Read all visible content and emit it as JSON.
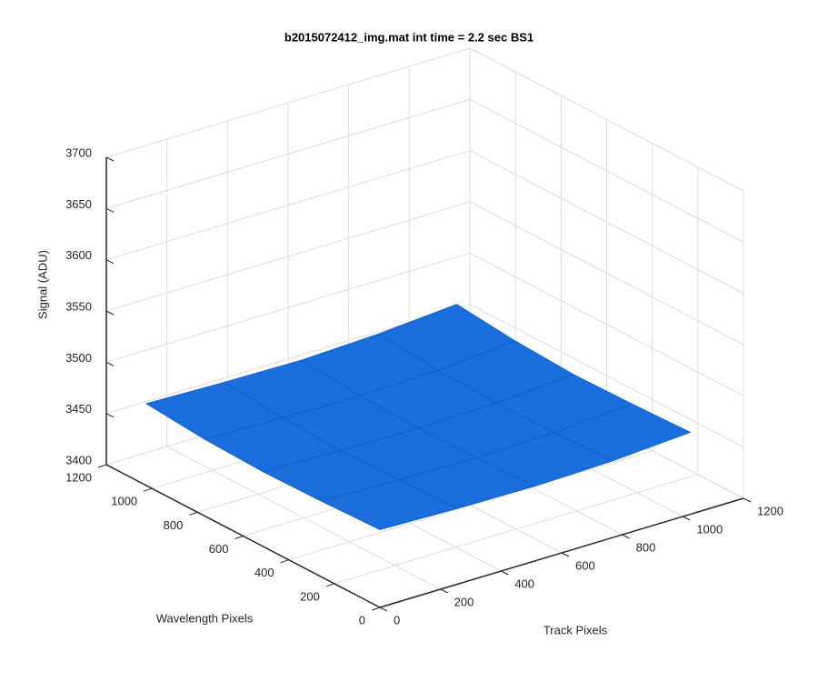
{
  "chart_data": {
    "type": "surface3d",
    "title": "b2015072412_img.mat int time = 2.2 sec   BS1",
    "xlabel": "Track Pixels",
    "ylabel": "Wavelength Pixels",
    "zlabel": "Signal (ADU)",
    "xlim": [
      0,
      1200
    ],
    "ylim": [
      0,
      1200
    ],
    "zlim": [
      3400,
      3700
    ],
    "xticks": [
      0,
      200,
      400,
      600,
      800,
      1000,
      1200
    ],
    "yticks": [
      0,
      200,
      400,
      600,
      800,
      1000,
      1200
    ],
    "zticks": [
      3400,
      3450,
      3500,
      3550,
      3600,
      3650,
      3700
    ],
    "grid": true,
    "color": "#1a6fdc",
    "edgecolor": "#0f5fd2",
    "x": [
      0,
      256,
      512,
      768,
      1024
    ],
    "y": [
      0,
      256,
      512,
      768,
      1024
    ],
    "z": [
      [
        3476,
        3474,
        3473,
        3475,
        3480
      ],
      [
        3474,
        3472,
        3471,
        3473,
        3478
      ],
      [
        3473,
        3471,
        3470,
        3472,
        3477
      ],
      [
        3475,
        3473,
        3472,
        3474,
        3480
      ],
      [
        3480,
        3478,
        3477,
        3480,
        3486
      ]
    ]
  }
}
